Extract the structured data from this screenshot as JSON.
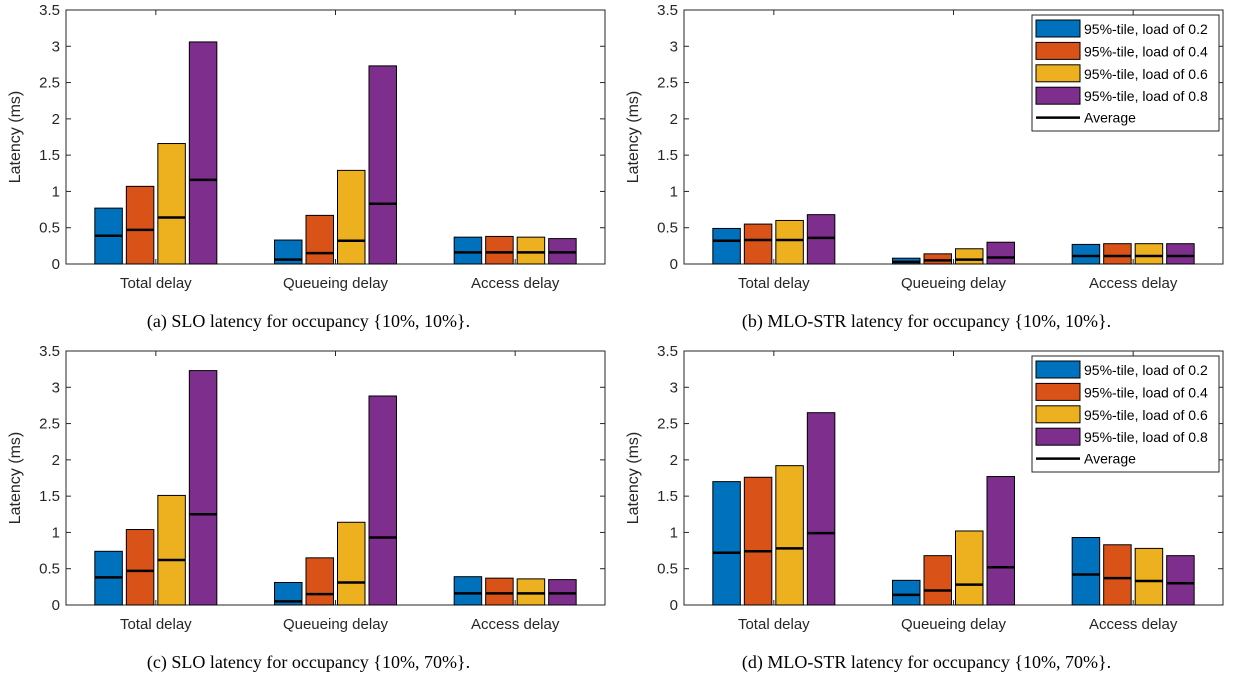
{
  "colors": {
    "load_0_2": "#0072BD",
    "load_0_4": "#D95319",
    "load_0_6": "#EDB120",
    "load_0_8": "#7E2F8E",
    "average": "#000000"
  },
  "chart_data": [
    {
      "type": "bar",
      "caption": "(a) SLO latency for occupancy {10%, 10%}.",
      "ylabel": "Latency (ms)",
      "ylim": [
        0,
        3.5
      ],
      "yticks": [
        "0",
        "0.5",
        "1",
        "1.5",
        "2",
        "2.5",
        "3",
        "3.5"
      ],
      "categories": [
        "Total delay",
        "Queueing delay",
        "Access delay"
      ],
      "legend": false,
      "series": [
        {
          "name": "95%-tile, load of 0.2",
          "values": [
            0.77,
            0.33,
            0.37
          ],
          "average": [
            0.39,
            0.06,
            0.16
          ]
        },
        {
          "name": "95%-tile, load of 0.4",
          "values": [
            1.07,
            0.67,
            0.38
          ],
          "average": [
            0.47,
            0.15,
            0.16
          ]
        },
        {
          "name": "95%-tile, load of 0.6",
          "values": [
            1.66,
            1.29,
            0.37
          ],
          "average": [
            0.64,
            0.32,
            0.16
          ]
        },
        {
          "name": "95%-tile, load of 0.8",
          "values": [
            3.06,
            2.73,
            0.35
          ],
          "average": [
            1.16,
            0.83,
            0.16
          ]
        }
      ],
      "average_label": "Average"
    },
    {
      "type": "bar",
      "caption": "(b) MLO-STR latency for occupancy {10%, 10%}.",
      "ylabel": "Latency (ms)",
      "ylim": [
        0,
        3.5
      ],
      "yticks": [
        "0",
        "0.5",
        "1",
        "1.5",
        "2",
        "2.5",
        "3",
        "3.5"
      ],
      "categories": [
        "Total delay",
        "Queueing delay",
        "Access delay"
      ],
      "legend": true,
      "series": [
        {
          "name": "95%-tile, load of 0.2",
          "values": [
            0.49,
            0.08,
            0.27
          ],
          "average": [
            0.32,
            0.03,
            0.11
          ]
        },
        {
          "name": "95%-tile, load of 0.4",
          "values": [
            0.55,
            0.14,
            0.28
          ],
          "average": [
            0.33,
            0.05,
            0.11
          ]
        },
        {
          "name": "95%-tile, load of 0.6",
          "values": [
            0.6,
            0.21,
            0.28
          ],
          "average": [
            0.33,
            0.06,
            0.11
          ]
        },
        {
          "name": "95%-tile, load of 0.8",
          "values": [
            0.68,
            0.3,
            0.28
          ],
          "average": [
            0.36,
            0.09,
            0.11
          ]
        }
      ],
      "average_label": "Average"
    },
    {
      "type": "bar",
      "caption": "(c) SLO latency for occupancy {10%, 70%}.",
      "ylabel": "Latency (ms)",
      "ylim": [
        0,
        3.5
      ],
      "yticks": [
        "0",
        "0.5",
        "1",
        "1.5",
        "2",
        "2.5",
        "3",
        "3.5"
      ],
      "categories": [
        "Total delay",
        "Queueing delay",
        "Access delay"
      ],
      "legend": false,
      "series": [
        {
          "name": "95%-tile, load of 0.2",
          "values": [
            0.74,
            0.31,
            0.39
          ],
          "average": [
            0.38,
            0.05,
            0.16
          ]
        },
        {
          "name": "95%-tile, load of 0.4",
          "values": [
            1.04,
            0.65,
            0.37
          ],
          "average": [
            0.47,
            0.15,
            0.16
          ]
        },
        {
          "name": "95%-tile, load of 0.6",
          "values": [
            1.51,
            1.14,
            0.36
          ],
          "average": [
            0.62,
            0.31,
            0.16
          ]
        },
        {
          "name": "95%-tile, load of 0.8",
          "values": [
            3.23,
            2.88,
            0.35
          ],
          "average": [
            1.25,
            0.93,
            0.16
          ]
        }
      ],
      "average_label": "Average"
    },
    {
      "type": "bar",
      "caption": "(d) MLO-STR latency for occupancy {10%, 70%}.",
      "ylabel": "Latency (ms)",
      "ylim": [
        0,
        3.5
      ],
      "yticks": [
        "0",
        "0.5",
        "1",
        "1.5",
        "2",
        "2.5",
        "3",
        "3.5"
      ],
      "categories": [
        "Total delay",
        "Queueing delay",
        "Access delay"
      ],
      "legend": true,
      "series": [
        {
          "name": "95%-tile, load of 0.2",
          "values": [
            1.7,
            0.34,
            0.93
          ],
          "average": [
            0.72,
            0.14,
            0.42
          ]
        },
        {
          "name": "95%-tile, load of 0.4",
          "values": [
            1.76,
            0.68,
            0.83
          ],
          "average": [
            0.74,
            0.2,
            0.37
          ]
        },
        {
          "name": "95%-tile, load of 0.6",
          "values": [
            1.92,
            1.02,
            0.78
          ],
          "average": [
            0.78,
            0.28,
            0.33
          ]
        },
        {
          "name": "95%-tile, load of 0.8",
          "values": [
            2.65,
            1.77,
            0.68
          ],
          "average": [
            0.99,
            0.52,
            0.3
          ]
        }
      ],
      "average_label": "Average"
    }
  ]
}
